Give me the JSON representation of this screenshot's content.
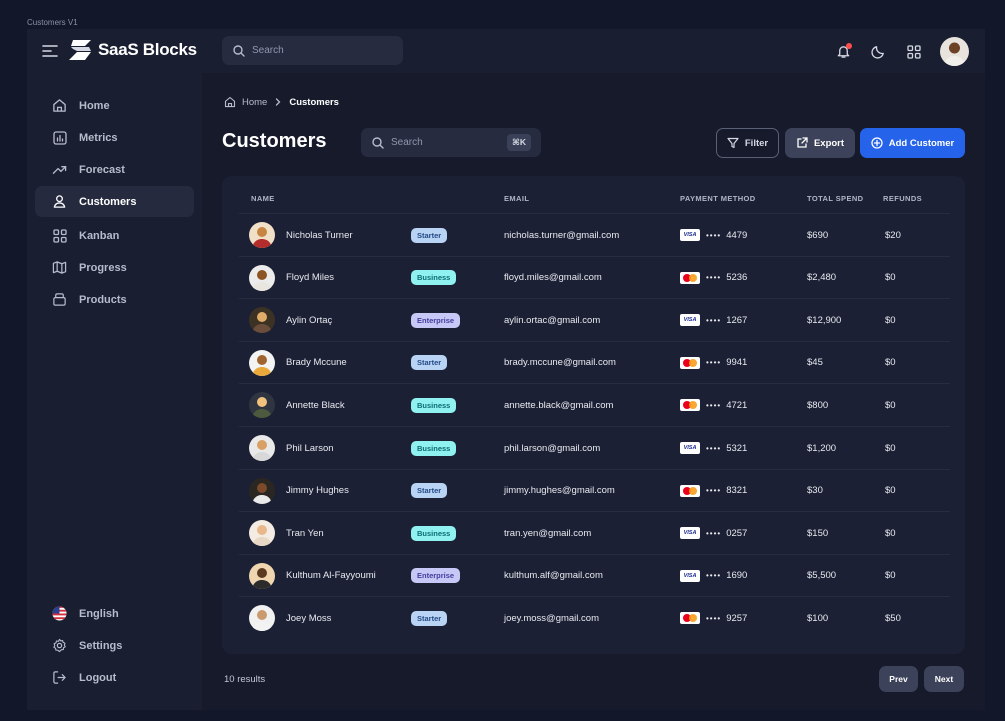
{
  "frame_label": "Customers V1",
  "header": {
    "brand": "SaaS Blocks",
    "search_placeholder": "Search"
  },
  "sidebar": {
    "items": [
      {
        "label": "Home",
        "icon": "home-icon"
      },
      {
        "label": "Metrics",
        "icon": "bar-chart-icon"
      },
      {
        "label": "Forecast",
        "icon": "trending-up-icon"
      },
      {
        "label": "Customers",
        "icon": "users-icon",
        "active": true
      },
      {
        "label": "Kanban",
        "icon": "grid-icon"
      },
      {
        "label": "Progress",
        "icon": "map-icon"
      },
      {
        "label": "Products",
        "icon": "box-icon"
      }
    ],
    "bottom": [
      {
        "label": "English",
        "icon": "us-flag-icon"
      },
      {
        "label": "Settings",
        "icon": "gear-icon"
      },
      {
        "label": "Logout",
        "icon": "logout-icon"
      }
    ]
  },
  "breadcrumb": {
    "home": "Home",
    "current": "Customers"
  },
  "page": {
    "title": "Customers",
    "search_placeholder": "Search",
    "shortcut": "⌘K",
    "filter_label": "Filter",
    "export_label": "Export",
    "add_label": "Add Customer"
  },
  "table": {
    "headers": {
      "name": "NAME",
      "email": "EMAIL",
      "payment": "PAYMENT METHOD",
      "spend": "TOTAL SPEND",
      "refunds": "REFUNDS"
    },
    "rows": [
      {
        "name": "Nicholas Turner",
        "plan": "Starter",
        "email": "nicholas.turner@gmail.com",
        "card": "visa",
        "last4": "4479",
        "spend": "$690",
        "refunds": "$20"
      },
      {
        "name": "Floyd Miles",
        "plan": "Business",
        "email": "floyd.miles@gmail.com",
        "card": "mastercard",
        "last4": "5236",
        "spend": "$2,480",
        "refunds": "$0"
      },
      {
        "name": "Aylin Ortaç",
        "plan": "Enterprise",
        "email": "aylin.ortac@gmail.com",
        "card": "visa",
        "last4": "1267",
        "spend": "$12,900",
        "refunds": "$0"
      },
      {
        "name": "Brady Mccune",
        "plan": "Starter",
        "email": "brady.mccune@gmail.com",
        "card": "mastercard",
        "last4": "9941",
        "spend": "$45",
        "refunds": "$0"
      },
      {
        "name": "Annette Black",
        "plan": "Business",
        "email": "annette.black@gmail.com",
        "card": "mastercard",
        "last4": "4721",
        "spend": "$800",
        "refunds": "$0"
      },
      {
        "name": "Phil Larson",
        "plan": "Business",
        "email": "phil.larson@gmail.com",
        "card": "visa",
        "last4": "5321",
        "spend": "$1,200",
        "refunds": "$0"
      },
      {
        "name": "Jimmy Hughes",
        "plan": "Starter",
        "email": "jimmy.hughes@gmail.com",
        "card": "mastercard",
        "last4": "8321",
        "spend": "$30",
        "refunds": "$0"
      },
      {
        "name": "Tran Yen",
        "plan": "Business",
        "email": "tran.yen@gmail.com",
        "card": "visa",
        "last4": "0257",
        "spend": "$150",
        "refunds": "$0"
      },
      {
        "name": "Kulthum Al-Fayyoumi",
        "plan": "Enterprise",
        "email": "kulthum.alf@gmail.com",
        "card": "visa",
        "last4": "1690",
        "spend": "$5,500",
        "refunds": "$0"
      },
      {
        "name": "Joey Moss",
        "plan": "Starter",
        "email": "joey.moss@gmail.com",
        "card": "mastercard",
        "last4": "9257",
        "spend": "$100",
        "refunds": "$50"
      }
    ]
  },
  "footer": {
    "results": "10 results",
    "prev": "Prev",
    "next": "Next"
  },
  "colors": {
    "accent": "#2563eb",
    "background": "#161a2b",
    "sidebar": "#1a1e31"
  }
}
